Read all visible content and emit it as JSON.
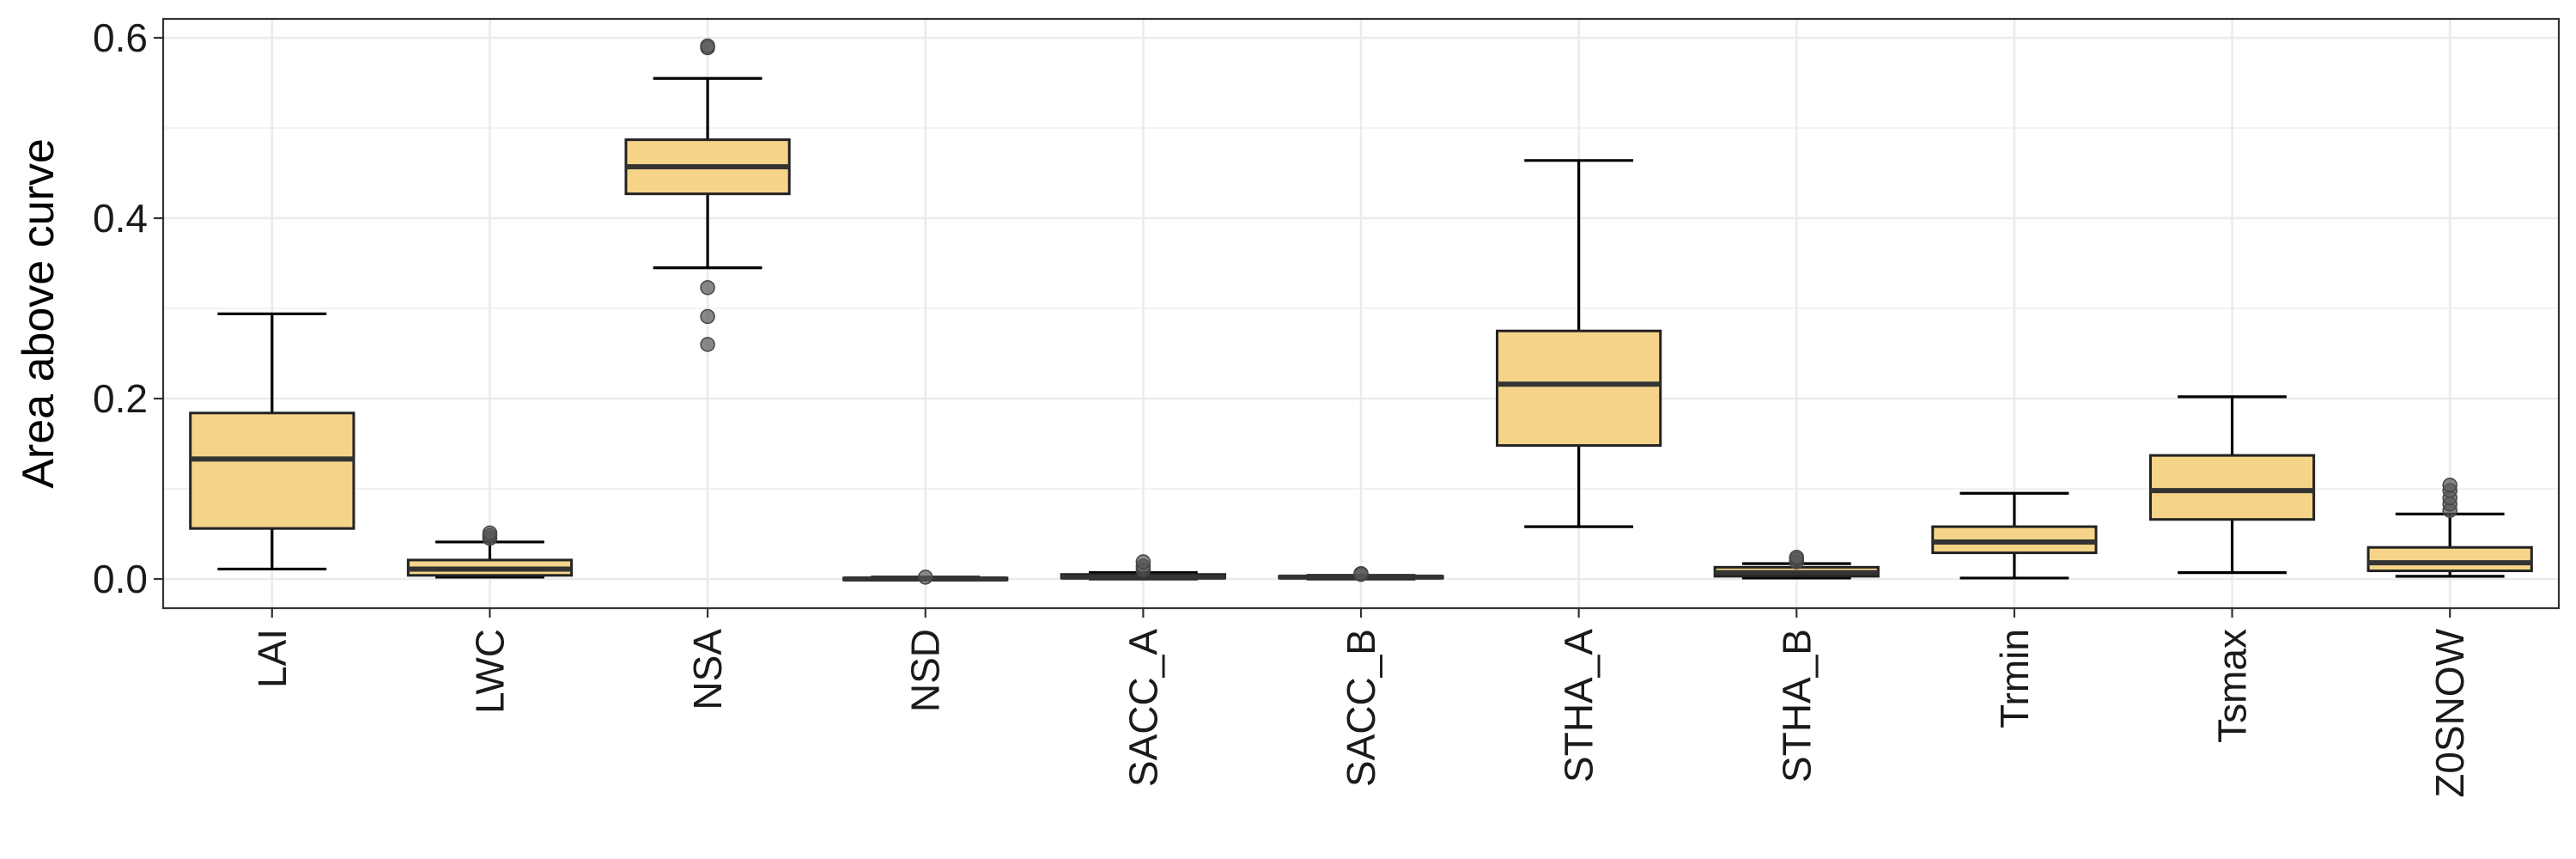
{
  "chart_data": {
    "type": "boxplot",
    "title": "",
    "xlabel": "",
    "ylabel": "Area above curve",
    "ylim": [
      -0.03,
      0.62
    ],
    "yticks": [
      0.0,
      0.2,
      0.4,
      0.6
    ],
    "ytick_labels": [
      "0.0",
      "0.2",
      "0.4",
      "0.6"
    ],
    "grid": true,
    "legend": "none",
    "box_color": "#f5d48a",
    "categories": [
      "LAI",
      "LWC",
      "NSA",
      "NSD",
      "SACC_A",
      "SACC_B",
      "STHA_A",
      "STHA_B",
      "Trmin",
      "Tsmax",
      "Z0SNOW"
    ],
    "boxes": [
      {
        "category": "LAI",
        "min": 0.011,
        "q1": 0.056,
        "median": 0.133,
        "q3": 0.184,
        "max": 0.294,
        "outliers": []
      },
      {
        "category": "LWC",
        "min": 0.002,
        "q1": 0.004,
        "median": 0.011,
        "q3": 0.021,
        "max": 0.041,
        "outliers": [
          0.045,
          0.048,
          0.051
        ]
      },
      {
        "category": "NSA",
        "min": 0.345,
        "q1": 0.427,
        "median": 0.457,
        "q3": 0.487,
        "max": 0.555,
        "outliers": [
          0.26,
          0.291,
          0.323,
          0.589,
          0.591
        ]
      },
      {
        "category": "NSD",
        "min": -0.001,
        "q1": -0.001,
        "median": 0.0,
        "q3": 0.001,
        "max": 0.002,
        "outliers": [
          0.002
        ]
      },
      {
        "category": "SACC_A",
        "min": 0.0,
        "q1": 0.001,
        "median": 0.002,
        "q3": 0.005,
        "max": 0.007,
        "outliers": [
          0.01,
          0.014,
          0.019
        ]
      },
      {
        "category": "SACC_B",
        "min": 0.0,
        "q1": 0.001,
        "median": 0.002,
        "q3": 0.003,
        "max": 0.004,
        "outliers": [
          0.005,
          0.006
        ]
      },
      {
        "category": "STHA_A",
        "min": 0.058,
        "q1": 0.148,
        "median": 0.216,
        "q3": 0.275,
        "max": 0.464,
        "outliers": []
      },
      {
        "category": "STHA_B",
        "min": 0.001,
        "q1": 0.003,
        "median": 0.007,
        "q3": 0.013,
        "max": 0.017,
        "outliers": [
          0.019,
          0.022,
          0.024
        ]
      },
      {
        "category": "Trmin",
        "min": 0.001,
        "q1": 0.029,
        "median": 0.041,
        "q3": 0.058,
        "max": 0.095,
        "outliers": []
      },
      {
        "category": "Tsmax",
        "min": 0.007,
        "q1": 0.066,
        "median": 0.098,
        "q3": 0.137,
        "max": 0.202,
        "outliers": []
      },
      {
        "category": "Z0SNOW",
        "min": 0.003,
        "q1": 0.009,
        "median": 0.018,
        "q3": 0.035,
        "max": 0.072,
        "outliers": [
          0.076,
          0.083,
          0.09,
          0.098,
          0.104
        ]
      }
    ]
  }
}
